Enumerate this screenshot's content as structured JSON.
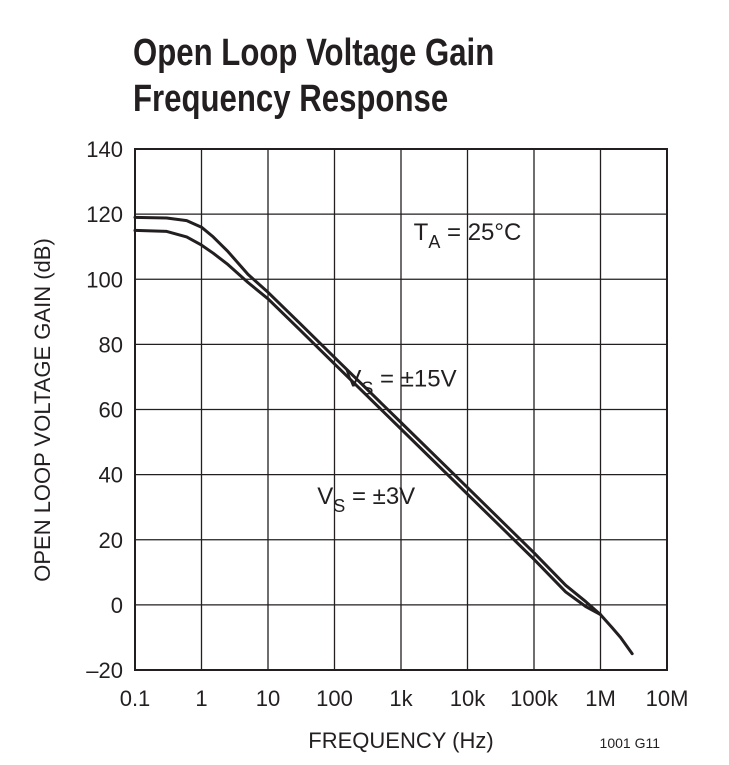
{
  "chart_data": {
    "type": "line",
    "title": [
      "Open Loop Voltage Gain",
      "Frequency Response"
    ],
    "xlabel": "FREQUENCY (Hz)",
    "ylabel": "OPEN LOOP VOLTAGE GAIN (dB)",
    "x_scale": "log",
    "xlim": [
      0.1,
      10000000
    ],
    "ylim": [
      -20,
      140
    ],
    "x_ticks": [
      0.1,
      1,
      10,
      100,
      1000,
      10000,
      100000,
      1000000,
      10000000
    ],
    "x_tick_labels": [
      "0.1",
      "1",
      "10",
      "100",
      "1k",
      "10k",
      "100k",
      "1M",
      "10M"
    ],
    "y_ticks": [
      -20,
      0,
      20,
      40,
      60,
      80,
      100,
      120,
      140
    ],
    "y_tick_labels": [
      "–20",
      "0",
      "20",
      "40",
      "60",
      "80",
      "100",
      "120",
      "140"
    ],
    "grid": true,
    "annotations": [
      {
        "main": "T",
        "sub": "A",
        "rest": " = 25°C",
        "x": 10000,
        "y": 112
      },
      {
        "main": "V",
        "sub": "S",
        "rest": " = ±15V",
        "x": 1000,
        "y": 67
      },
      {
        "main": "V",
        "sub": "S",
        "rest": " = ±3V",
        "x": 300,
        "y": 31
      }
    ],
    "series": [
      {
        "label": "VS = ±15V",
        "x": [
          0.1,
          0.3,
          0.6,
          1,
          1.5,
          2.5,
          5,
          10,
          30,
          100,
          1000,
          10000,
          100000,
          300000,
          600000,
          1000000,
          1500000,
          2000000,
          3000000
        ],
        "y": [
          119,
          118.8,
          118,
          116,
          113,
          108.5,
          101.5,
          96,
          86.5,
          76,
          56,
          36,
          16,
          6,
          1,
          -3,
          -7,
          -10,
          -15
        ]
      },
      {
        "label": "VS = ±3V",
        "x": [
          0.1,
          0.3,
          0.6,
          1,
          1.5,
          2.5,
          5,
          10,
          30,
          100,
          1000,
          10000,
          100000,
          300000,
          600000,
          1000000
        ],
        "y": [
          115,
          114.7,
          113,
          110.5,
          108,
          104.5,
          99,
          94,
          84.5,
          74,
          54,
          34,
          14,
          4,
          -0.5,
          -3
        ]
      }
    ],
    "figure_id": "1001 G11"
  }
}
